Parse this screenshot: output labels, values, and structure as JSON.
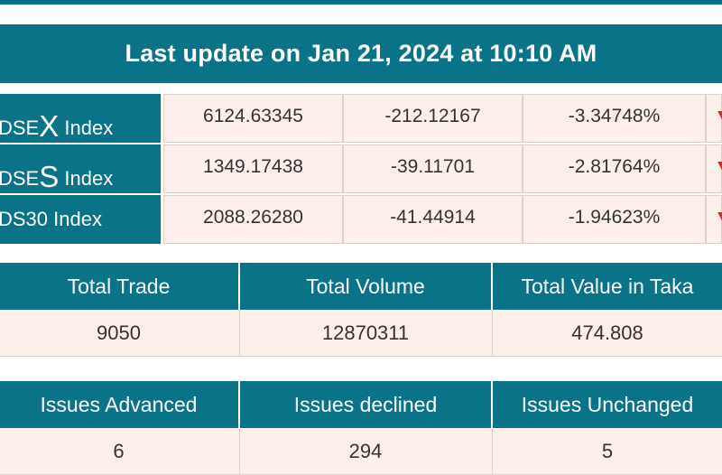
{
  "banner": {
    "text": "Last update on Jan 21, 2024 at 10:10 AM"
  },
  "indices": [
    {
      "name_prefix": "DSE",
      "name_big": "X",
      "name_suffix": " Index",
      "value": "6124.63345",
      "change": "-212.12167",
      "percent": "-3.34748%",
      "trend_icon": "down-arrow-icon"
    },
    {
      "name_prefix": "DSE",
      "name_big": "S",
      "name_suffix": " Index",
      "value": "1349.17438",
      "change": "-39.11701",
      "percent": "-2.81764%",
      "trend_icon": "down-arrow-icon"
    },
    {
      "name_plain": "DS30 Index",
      "value": "2088.26280",
      "change": "-41.44914",
      "percent": "-1.94623%",
      "trend_icon": "down-arrow-icon"
    }
  ],
  "trade_summary": {
    "headers": [
      "Total Trade",
      "Total Volume",
      "Total Value in Taka"
    ],
    "values": [
      "9050",
      "12870311",
      "474.808"
    ]
  },
  "issues_summary": {
    "headers": [
      "Issues Advanced",
      "Issues declined",
      "Issues Unchanged"
    ],
    "values": [
      "6",
      "294",
      "5"
    ]
  },
  "colors": {
    "header_bg": "#0a7387",
    "cell_bg": "#fdf0ea",
    "down": "#d02a2a"
  }
}
